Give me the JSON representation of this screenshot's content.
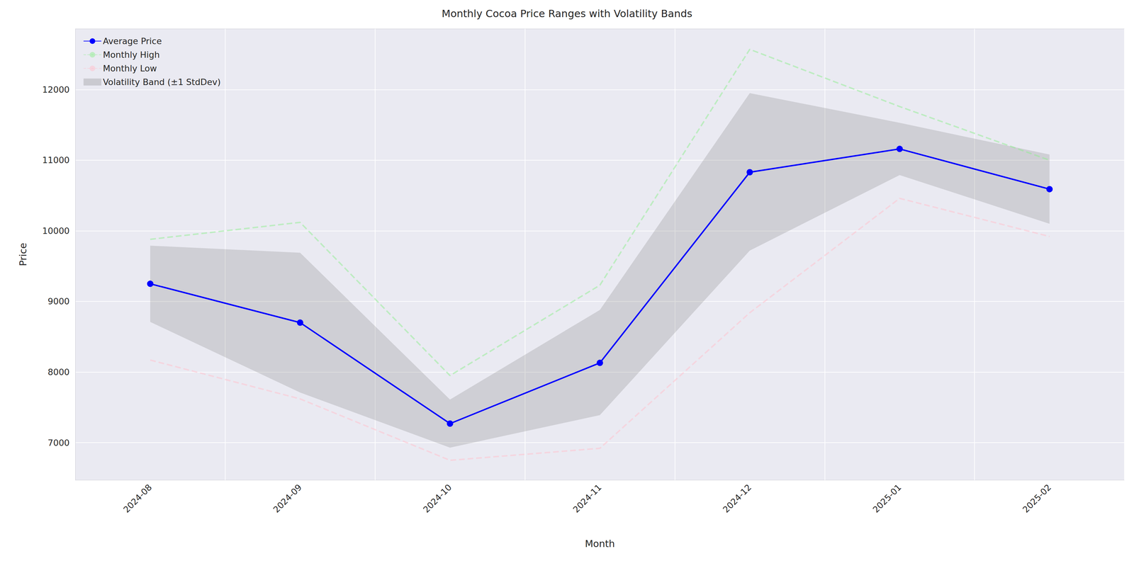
{
  "chart_data": {
    "type": "line",
    "title": "Monthly Cocoa Price Ranges with Volatility Bands",
    "x_label": "Month",
    "y_label": "Price",
    "categories": [
      "2024-08",
      "2024-09",
      "2024-10",
      "2024-11",
      "2024-12",
      "2025-01",
      "2025-02"
    ],
    "series": [
      {
        "name": "Average Price",
        "color": "blue",
        "marker": "circle",
        "line_style": "solid",
        "values": [
          9250,
          8700,
          7270,
          8130,
          10830,
          11160,
          10590
        ]
      },
      {
        "name": "Monthly High",
        "color": "lightgreen",
        "line_style": "dashed",
        "values": [
          9880,
          10120,
          7950,
          9230,
          12570,
          11760,
          11000
        ]
      },
      {
        "name": "Monthly Low",
        "color": "pink",
        "line_style": "dashed",
        "values": [
          8170,
          7620,
          6750,
          6920,
          8840,
          10460,
          9920
        ]
      },
      {
        "name": "Volatility Band (±1 StdDev)",
        "type": "band",
        "color": "gray",
        "lower": [
          8710,
          7710,
          6930,
          7390,
          9720,
          10790,
          10100
        ],
        "upper": [
          9790,
          9690,
          7610,
          8880,
          11950,
          11530,
          11080
        ]
      }
    ],
    "ylim": [
      6470,
      12860
    ],
    "yticks": [
      7000,
      8000,
      9000,
      10000,
      11000,
      12000
    ],
    "grid": true,
    "legend": "upper left"
  }
}
